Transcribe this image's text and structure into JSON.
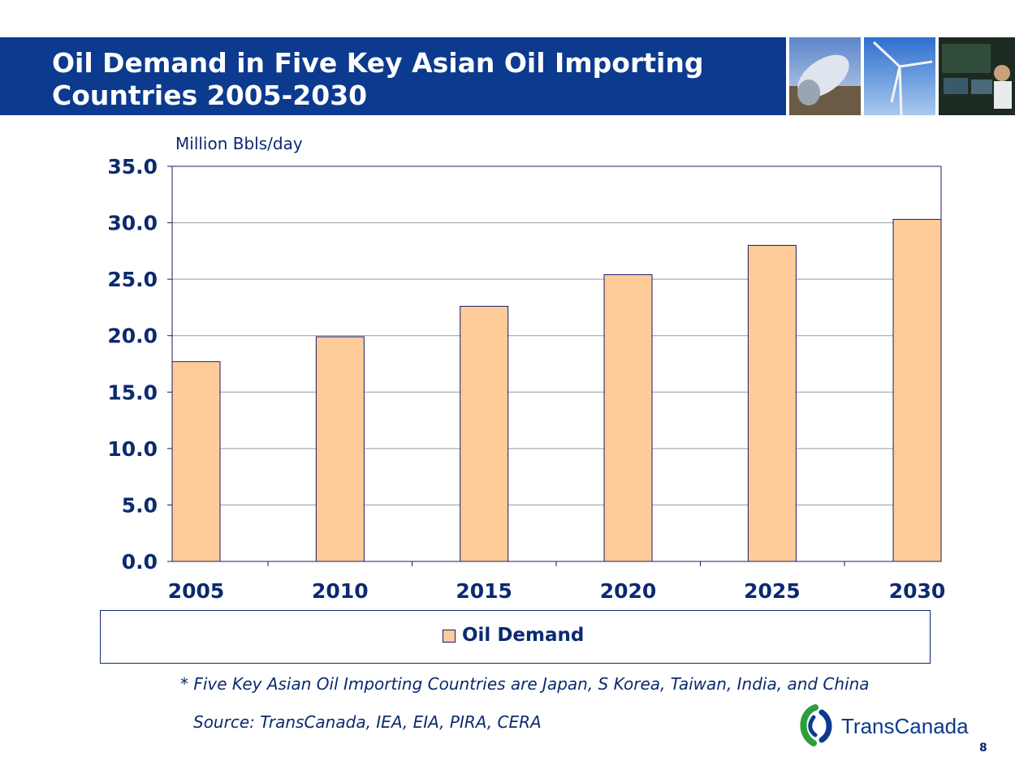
{
  "slide": {
    "title": "Oil Demand in Five Key Asian Oil Importing Countries 2005-2030",
    "unit_label": "Million Bbls/day",
    "footnote": "* Five Key Asian Oil Importing Countries are Japan, S Korea, Taiwan, India, and China",
    "source": "Source:  TransCanada, IEA, EIA, PIRA, CERA",
    "logo_text": "TransCanada",
    "page_number": "8"
  },
  "chart_data": {
    "type": "bar",
    "categories": [
      "2005",
      "2010",
      "2015",
      "2020",
      "2025",
      "2030"
    ],
    "series": [
      {
        "name": "Oil Demand",
        "values": [
          17.7,
          19.9,
          22.6,
          25.4,
          28.0,
          30.3
        ]
      }
    ],
    "ylabel": "Million Bbls/day",
    "ylim": [
      0,
      35
    ],
    "yticks": [
      "0.0",
      "5.0",
      "10.0",
      "15.0",
      "20.0",
      "25.0",
      "30.0",
      "35.0"
    ],
    "grid": true,
    "legend": "bottom",
    "colors": {
      "bar": "#ffcc99",
      "bar_border": "#1a1a6a",
      "axis_text": "#0b2a6f"
    }
  },
  "colors": {
    "title_bar": "#0b3a8f"
  },
  "icons": [
    "pipeline-photo",
    "wind-turbine-photo",
    "control-room-photo",
    "transcanada-logo-icon"
  ]
}
